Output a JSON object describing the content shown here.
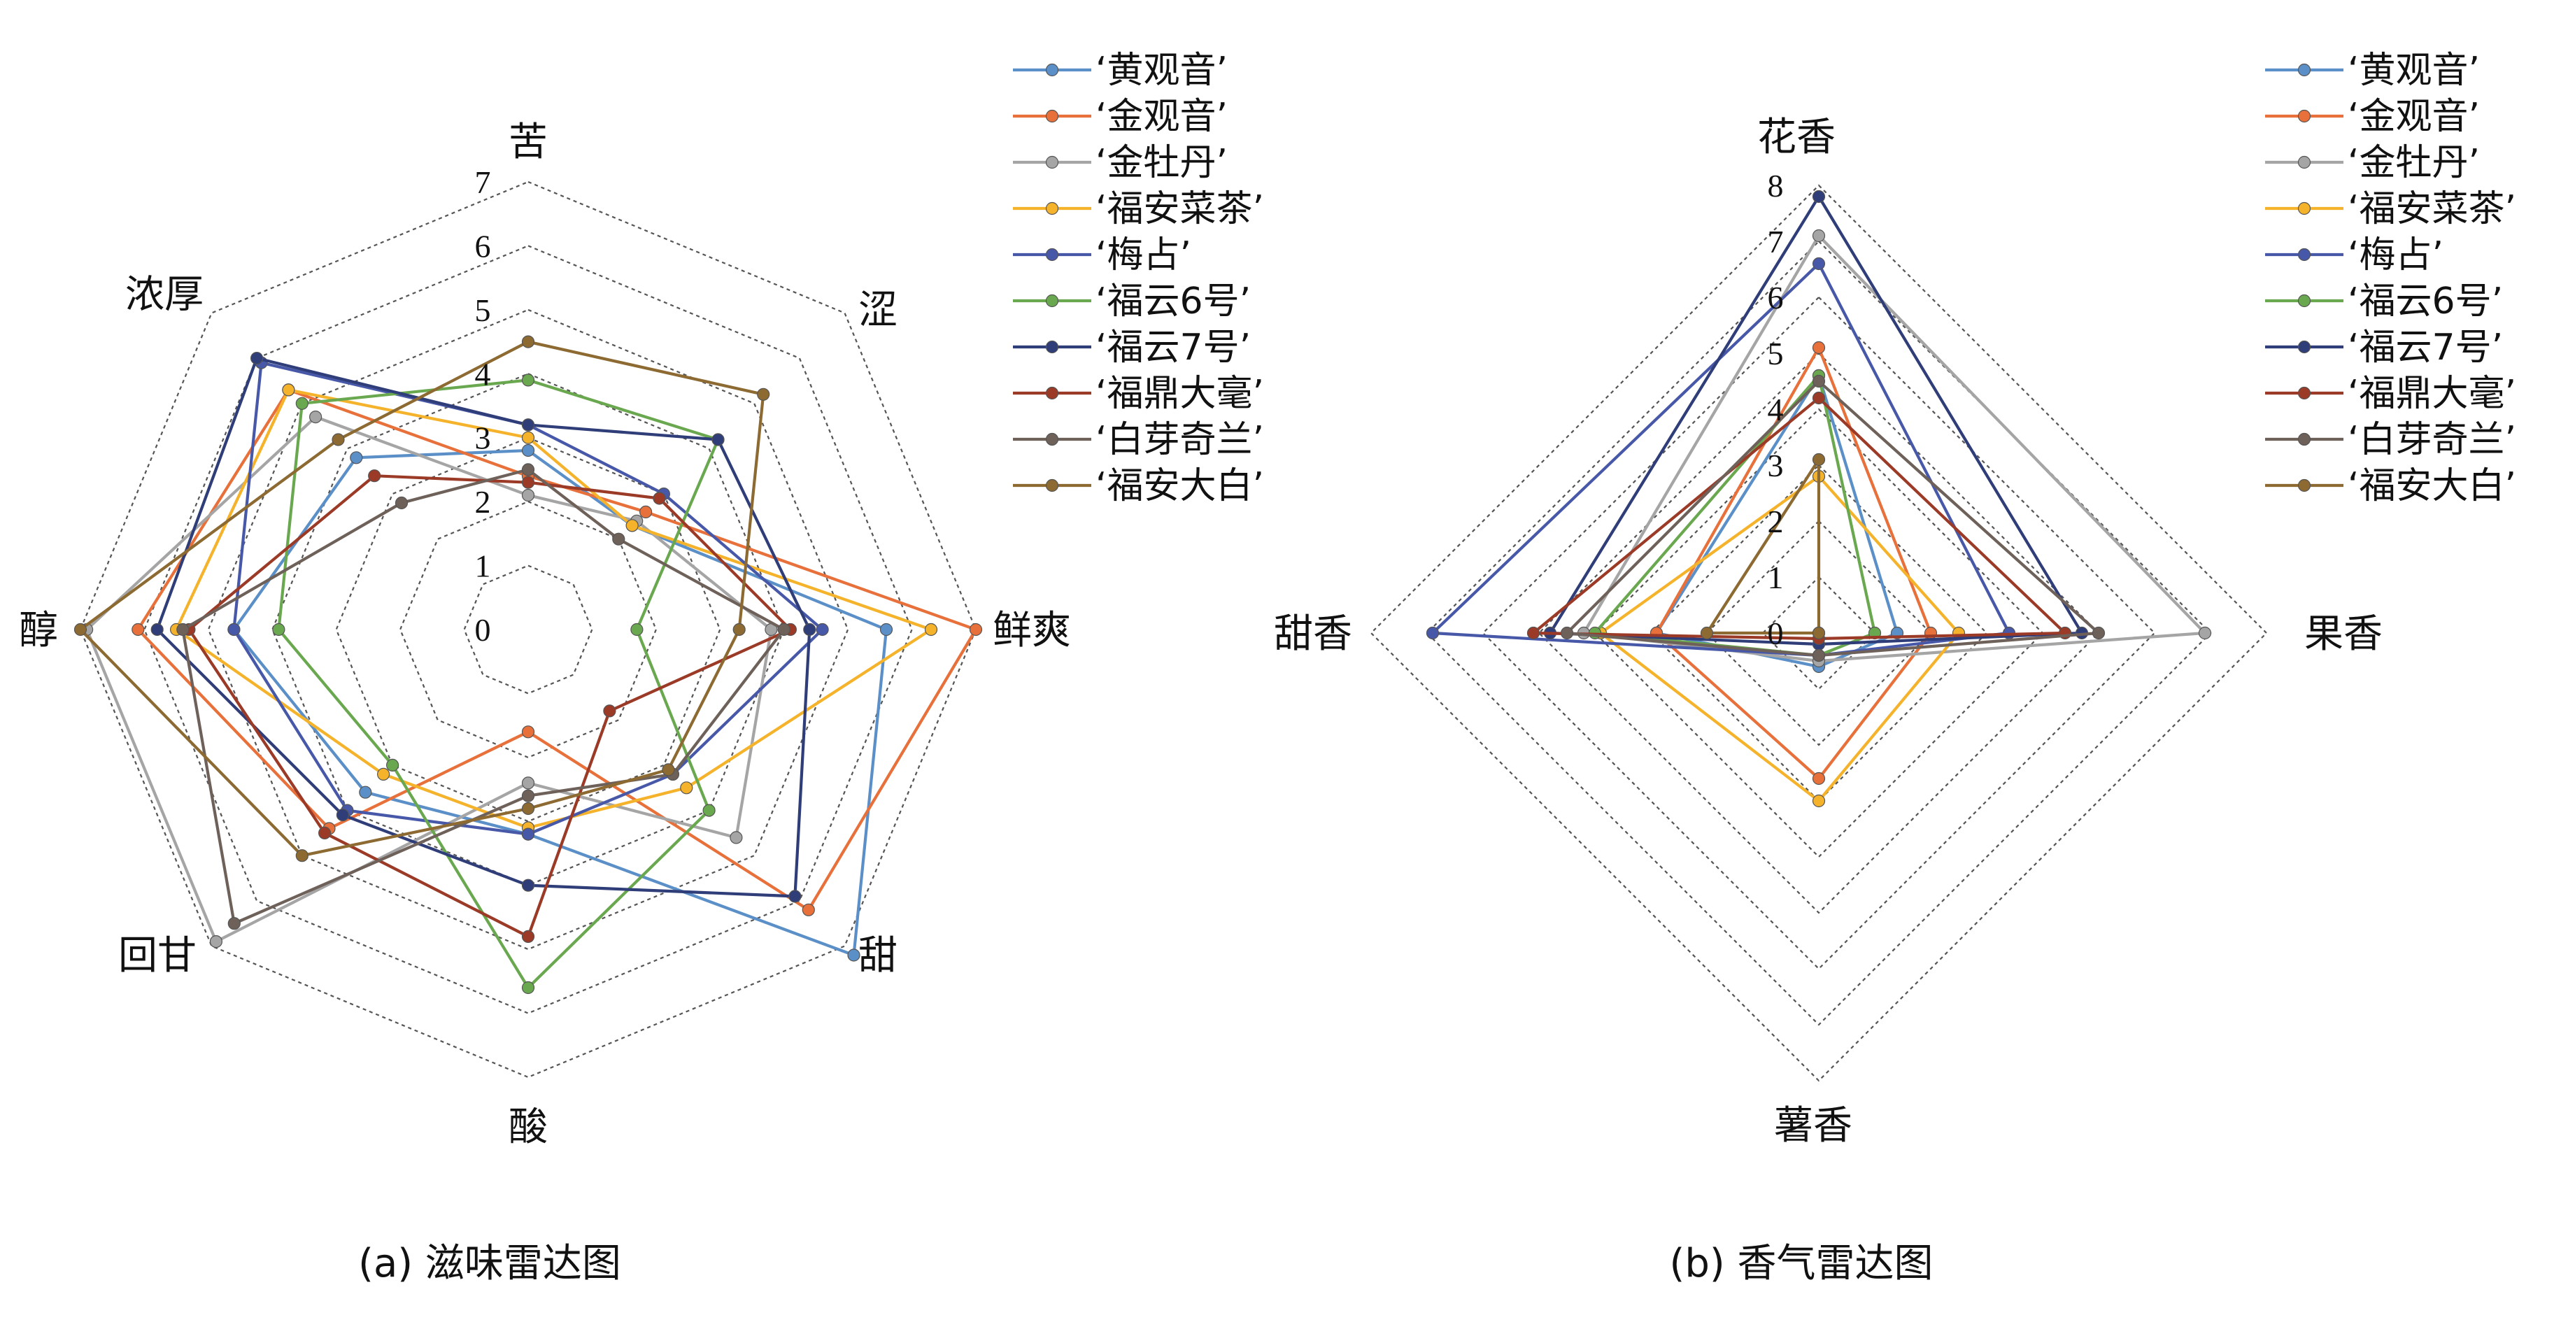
{
  "chart_data": [
    {
      "type": "radar",
      "caption": "(a) 滋味雷达图",
      "axes": [
        "苦",
        "涩",
        "鲜爽",
        "甜",
        "酸",
        "回甘",
        "醇",
        "浓厚"
      ],
      "ticks": [
        "0",
        "1",
        "2",
        "3",
        "4",
        "5",
        "6",
        "7"
      ],
      "range": [
        0,
        7
      ],
      "grid": true,
      "legend": "top-right",
      "series": [
        {
          "name": "‘黄观音’",
          "color": "#5b8fc7",
          "values": [
            2.8,
            2.3,
            5.6,
            7.2,
            3.2,
            3.6,
            4.6,
            3.8
          ]
        },
        {
          "name": "‘金观音’",
          "color": "#e8703a",
          "values": [
            2.4,
            2.6,
            7.0,
            6.2,
            1.6,
            4.4,
            6.1,
            5.3
          ]
        },
        {
          "name": "‘金牡丹’",
          "color": "#a5a5a5",
          "values": [
            2.1,
            2.4,
            3.8,
            4.6,
            2.4,
            6.9,
            6.9,
            4.7
          ]
        },
        {
          "name": "‘福安菜茶’",
          "color": "#f5b32c",
          "values": [
            3.0,
            2.3,
            6.3,
            3.5,
            3.1,
            3.2,
            5.5,
            5.3
          ]
        },
        {
          "name": "‘梅占’",
          "color": "#4858a8",
          "values": [
            3.2,
            3.0,
            4.6,
            3.2,
            3.2,
            4.0,
            4.6,
            5.9
          ]
        },
        {
          "name": "‘福云6号’",
          "color": "#6aa84f",
          "values": [
            3.9,
            4.2,
            1.7,
            4.0,
            5.6,
            3.0,
            3.9,
            5.0
          ]
        },
        {
          "name": "‘福云7号’",
          "color": "#2f3d78",
          "values": [
            3.2,
            4.2,
            4.4,
            5.9,
            4.0,
            4.1,
            5.8,
            6.0
          ]
        },
        {
          "name": "‘福鼎大毫’",
          "color": "#9b3a26",
          "values": [
            2.3,
            2.9,
            4.1,
            1.8,
            4.8,
            4.5,
            5.3,
            3.4
          ]
        },
        {
          "name": "‘白芽奇兰’",
          "color": "#6e6159",
          "values": [
            2.5,
            2.0,
            4.0,
            3.2,
            2.6,
            6.5,
            5.4,
            2.8
          ]
        },
        {
          "name": "‘福安大白’",
          "color": "#8c6a32",
          "values": [
            4.5,
            5.2,
            3.3,
            3.1,
            2.8,
            5.0,
            7.0,
            4.2
          ]
        }
      ]
    },
    {
      "type": "radar",
      "caption": "(b) 香气雷达图",
      "axes": [
        "花香",
        "果香",
        "薯香",
        "甜香"
      ],
      "ticks": [
        "0",
        "1",
        "2",
        "3",
        "4",
        "5",
        "6",
        "7",
        "8"
      ],
      "range": [
        0,
        8
      ],
      "grid": true,
      "legend": "top-right",
      "series": [
        {
          "name": "‘黄观音’",
          "color": "#5b8fc7",
          "values": [
            4.6,
            1.4,
            0.6,
            2.9
          ]
        },
        {
          "name": "‘金观音’",
          "color": "#e8703a",
          "values": [
            5.1,
            2.0,
            2.6,
            2.9
          ]
        },
        {
          "name": "‘金牡丹’",
          "color": "#a5a5a5",
          "values": [
            7.1,
            6.9,
            0.5,
            4.2
          ]
        },
        {
          "name": "‘福安菜茶’",
          "color": "#f5b32c",
          "values": [
            2.8,
            2.5,
            3.0,
            3.9
          ]
        },
        {
          "name": "‘梅占’",
          "color": "#4858a8",
          "values": [
            6.6,
            3.4,
            0.4,
            6.9
          ]
        },
        {
          "name": "‘福云6号’",
          "color": "#6aa84f",
          "values": [
            4.6,
            1.0,
            0.4,
            4.0
          ]
        },
        {
          "name": "‘福云7号’",
          "color": "#2f3d78",
          "values": [
            7.8,
            4.7,
            0.2,
            4.8
          ]
        },
        {
          "name": "‘福鼎大毫’",
          "color": "#9b3a26",
          "values": [
            4.2,
            4.4,
            0.1,
            5.1
          ]
        },
        {
          "name": "‘白芽奇兰’",
          "color": "#6e6159",
          "values": [
            4.5,
            5.0,
            0.4,
            4.5
          ]
        },
        {
          "name": "‘福安大白’",
          "color": "#8c6a32",
          "values": [
            3.1,
            0.0,
            0.0,
            2.0
          ]
        }
      ]
    }
  ]
}
